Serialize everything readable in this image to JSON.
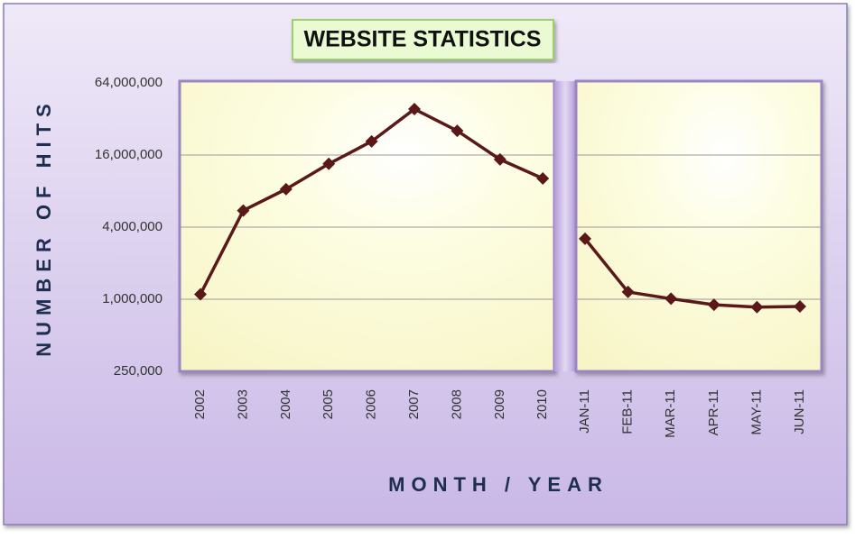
{
  "chart_data": {
    "type": "line",
    "title": "WEBSITE STATISTICS",
    "x_label": "MONTH / YEAR",
    "y_label": "NUMBER OF HITS",
    "categories": [
      "2002",
      "2003",
      "2004",
      "2005",
      "2006",
      "2007",
      "2008",
      "2009",
      "2010",
      "JAN-11",
      "FEB-11",
      "MAR-11",
      "APR-11",
      "MAY-11",
      "JUN-11"
    ],
    "series": [
      {
        "name": "Hits",
        "color": "#5a1818",
        "values": [
          1100000,
          5500000,
          8300000,
          13500000,
          20800000,
          38700000,
          25500000,
          14700000,
          10200000,
          3200000,
          1150000,
          1010000,
          900000,
          860000,
          870000
        ]
      }
    ],
    "yscale": "log",
    "ylim": [
      250000,
      64000000
    ],
    "yticks": [
      {
        "value": 250000,
        "label": "250,000"
      },
      {
        "value": 1000000,
        "label": "1,000,000"
      },
      {
        "value": 4000000,
        "label": "4,000,000"
      },
      {
        "value": 16000000,
        "label": "16,000,000"
      },
      {
        "value": 64000000,
        "label": "64,000,000"
      }
    ],
    "grid": true
  }
}
